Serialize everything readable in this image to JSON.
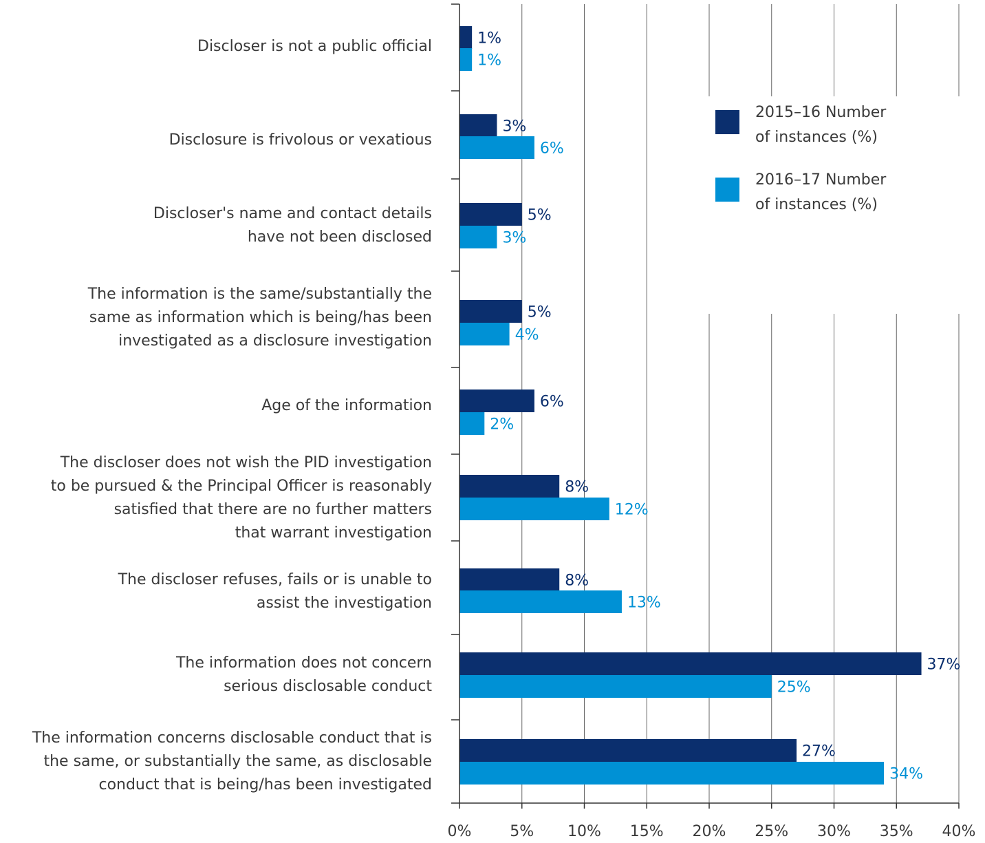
{
  "chart_data": {
    "type": "bar",
    "orientation": "horizontal",
    "title": "",
    "xlabel": "",
    "ylabel": "",
    "xlim": [
      0,
      40
    ],
    "grid": true,
    "legend_position": "top-right",
    "x_ticks": [
      "0%",
      "5%",
      "10%",
      "15%",
      "20%",
      "25%",
      "30%",
      "35%",
      "40%"
    ],
    "categories": [
      [
        "Discloser is not a public official"
      ],
      [
        "Disclosure is frivolous or vexatious"
      ],
      [
        "Discloser's name and contact details",
        "have not been disclosed"
      ],
      [
        "The information is the same/substantially the",
        "same as information which is being/has been",
        "investigated as a disclosure investigation"
      ],
      [
        "Age of the information"
      ],
      [
        "The discloser does not wish the PID investigation",
        "to be pursued & the Principal Officer is reasonably",
        "satisfied that there are no further matters",
        "that warrant investigation"
      ],
      [
        "The discloser refuses, fails or is unable to",
        "assist the investigation"
      ],
      [
        "The information does not concern",
        "serious disclosable conduct"
      ],
      [
        "The information concerns disclosable conduct that is",
        "the same, or substantially the same, as disclosable",
        "conduct that is being/has been investigated"
      ]
    ],
    "series": [
      {
        "name": "2015–16 Number of instances (%)",
        "legend_lines": [
          "2015–16 Number",
          "of instances (%)"
        ],
        "color": "#0b2f6e",
        "values": [
          1,
          3,
          5,
          5,
          6,
          8,
          8,
          37,
          27
        ],
        "labels": [
          "1%",
          "3%",
          "5%",
          "5%",
          "6%",
          "8%",
          "8%",
          "37%",
          "27%"
        ]
      },
      {
        "name": "2016–17 Number of instances (%)",
        "legend_lines": [
          "2016–17 Number",
          "of instances (%)"
        ],
        "color": "#0091d5",
        "values": [
          1,
          6,
          3,
          4,
          2,
          12,
          13,
          25,
          34
        ],
        "labels": [
          "1%",
          "6%",
          "3%",
          "4%",
          "2%",
          "12%",
          "13%",
          "25%",
          "34%"
        ]
      }
    ]
  }
}
